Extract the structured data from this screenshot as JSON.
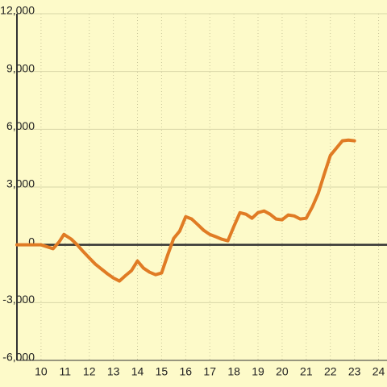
{
  "chart_data": {
    "type": "line",
    "x": [
      9,
      9.5,
      10,
      10.25,
      10.5,
      10.75,
      10.95,
      11.25,
      11.5,
      11.75,
      12,
      12.25,
      12.5,
      12.75,
      13,
      13.25,
      13.5,
      13.75,
      14,
      14.25,
      14.5,
      14.75,
      15,
      15.25,
      15.5,
      15.75,
      16,
      16.25,
      16.5,
      16.75,
      17,
      17.25,
      17.5,
      17.75,
      18,
      18.25,
      18.5,
      18.75,
      19,
      19.25,
      19.5,
      19.75,
      20,
      20.25,
      20.5,
      20.75,
      21,
      21.25,
      21.5,
      21.75,
      22,
      22.25,
      22.5,
      22.75,
      23
    ],
    "series": [
      {
        "color": "#e07b24",
        "values": [
          0,
          0,
          0,
          -100,
          -200,
          150,
          540,
          300,
          0,
          -350,
          -680,
          -1000,
          -1250,
          -1500,
          -1720,
          -1880,
          -1600,
          -1340,
          -840,
          -1210,
          -1420,
          -1550,
          -1460,
          -540,
          330,
          710,
          1460,
          1340,
          1050,
          750,
          540,
          420,
          290,
          210,
          960,
          1670,
          1590,
          1380,
          1670,
          1760,
          1590,
          1340,
          1300,
          1550,
          1500,
          1340,
          1380,
          1960,
          2680,
          3680,
          4640,
          5020,
          5400,
          5440,
          5400
        ]
      }
    ],
    "xlim": [
      9,
      24.35
    ],
    "xticks": [
      10,
      11,
      12,
      13,
      14,
      15,
      16,
      17,
      18,
      19,
      20,
      21,
      22,
      23,
      24
    ],
    "ylim": [
      -6000,
      12000
    ],
    "yticks": [
      {
        "value": -6000,
        "label": "-6,000"
      },
      {
        "value": -3000,
        "label": "-3,000"
      },
      0,
      {
        "value": 3000,
        "label": "3,000"
      },
      {
        "value": 6000,
        "label": "6,000"
      },
      {
        "value": 9000,
        "label": "9,000"
      },
      {
        "value": 12000,
        "label": "12,000"
      }
    ],
    "grid": true
  }
}
